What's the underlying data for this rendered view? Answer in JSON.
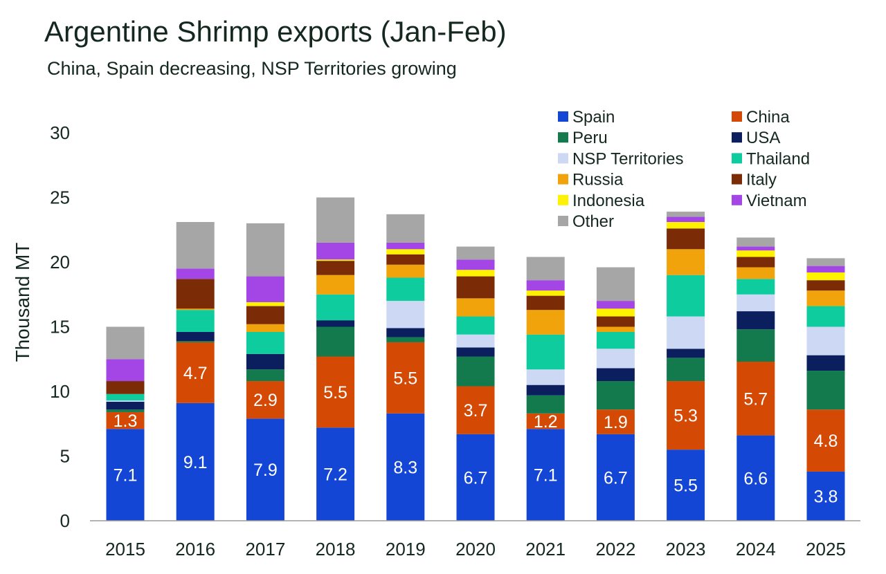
{
  "header": {
    "title": "Argentine Shrimp exports (Jan-Feb)",
    "subtitle": "China, Spain decreasing, NSP Territories growing"
  },
  "chart_data": {
    "type": "bar",
    "stacked": true,
    "title": "Argentine Shrimp exports (Jan-Feb)",
    "subtitle": "China, Spain decreasing, NSP Territories growing",
    "xlabel": "",
    "ylabel": "Thousand MT",
    "ylim": [
      0,
      30
    ],
    "yticks": [
      0,
      5,
      10,
      15,
      20,
      25,
      30
    ],
    "grid": false,
    "legend_position": "top-right",
    "categories": [
      "2015",
      "2016",
      "2017",
      "2018",
      "2019",
      "2020",
      "2021",
      "2022",
      "2023",
      "2024",
      "2025"
    ],
    "series": [
      {
        "name": "Spain",
        "color": "#1446d6",
        "labeled": true,
        "values": [
          7.1,
          9.1,
          7.9,
          7.2,
          8.3,
          6.7,
          7.1,
          6.7,
          5.5,
          6.6,
          3.8
        ]
      },
      {
        "name": "China",
        "color": "#d44a05",
        "labeled": true,
        "values": [
          1.3,
          4.7,
          2.9,
          5.5,
          5.5,
          3.7,
          1.2,
          1.9,
          5.3,
          5.7,
          4.8
        ]
      },
      {
        "name": "Peru",
        "color": "#127a4c",
        "values": [
          0.2,
          0.1,
          0.9,
          2.3,
          0.4,
          2.3,
          1.4,
          2.2,
          1.8,
          2.5,
          3.0
        ]
      },
      {
        "name": "USA",
        "color": "#0b1f5e",
        "values": [
          0.6,
          0.7,
          1.2,
          0.5,
          0.7,
          0.7,
          0.8,
          1.0,
          0.7,
          1.4,
          1.2
        ]
      },
      {
        "name": "NSP Territories",
        "color": "#cdd8f5",
        "values": [
          0.1,
          0.0,
          0.0,
          0.0,
          2.1,
          1.0,
          1.2,
          1.5,
          2.5,
          1.3,
          2.2
        ]
      },
      {
        "name": "Thailand",
        "color": "#0fcc9e",
        "values": [
          0.5,
          1.7,
          1.7,
          2.0,
          1.8,
          1.4,
          2.7,
          1.3,
          3.2,
          1.2,
          1.6
        ]
      },
      {
        "name": "Russia",
        "color": "#f0a30a",
        "values": [
          0.0,
          0.1,
          0.6,
          1.5,
          1.0,
          1.4,
          1.9,
          0.4,
          2.0,
          0.9,
          1.2
        ]
      },
      {
        "name": "Italy",
        "color": "#7b2c07",
        "values": [
          1.0,
          2.3,
          1.4,
          1.1,
          0.8,
          1.7,
          1.1,
          0.8,
          1.6,
          0.8,
          0.8
        ]
      },
      {
        "name": "Indonesia",
        "color": "#fff200",
        "values": [
          0.0,
          0.0,
          0.3,
          0.1,
          0.4,
          0.5,
          0.4,
          0.6,
          0.5,
          0.5,
          0.6
        ]
      },
      {
        "name": "Vietnam",
        "color": "#a446e6",
        "values": [
          1.7,
          0.8,
          2.0,
          1.3,
          0.5,
          0.8,
          0.8,
          0.6,
          0.4,
          0.3,
          0.5
        ]
      },
      {
        "name": "Other",
        "color": "#a6a6a6",
        "values": [
          2.5,
          3.6,
          4.1,
          3.5,
          2.2,
          1.0,
          1.8,
          2.6,
          0.4,
          0.7,
          0.6
        ]
      }
    ]
  }
}
